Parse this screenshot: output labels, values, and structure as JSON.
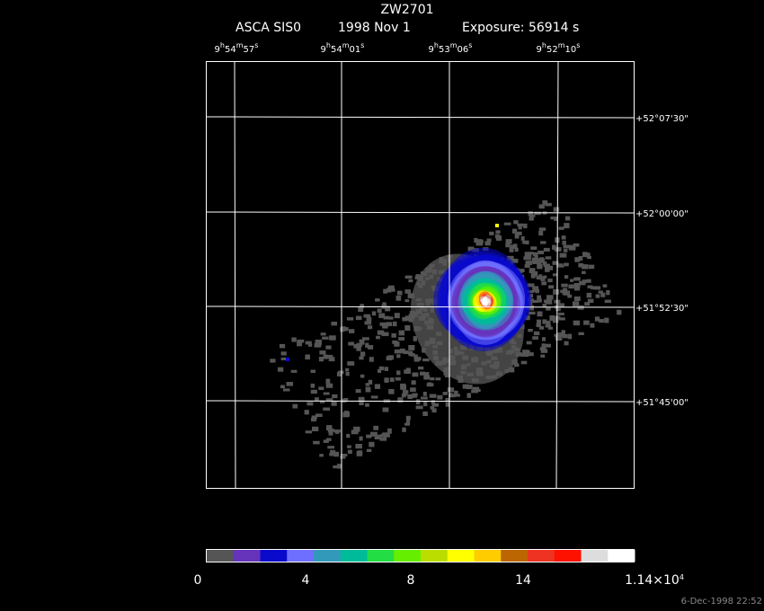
{
  "header": {
    "title": "ZW2701",
    "instrument": "ASCA SIS0",
    "date": "1998 Nov  1",
    "exposure": "Exposure: 56914 s"
  },
  "ra_labels": [
    [
      "9",
      "h",
      "54",
      "m",
      "57",
      "s"
    ],
    [
      "9",
      "h",
      "54",
      "m",
      "01",
      "s"
    ],
    [
      "9",
      "h",
      "53",
      "m",
      "06",
      "s"
    ],
    [
      "9",
      "h",
      "52",
      "m",
      "10",
      "s"
    ]
  ],
  "dec_labels": [
    "+52°07'30\"",
    "+52°00'00\"",
    "+51°52'30\"",
    "+51°45'00\""
  ],
  "colorbar": {
    "colors": [
      "#555555",
      "#6633bb",
      "#0a0acc",
      "#6f6fff",
      "#3399bb",
      "#00bb99",
      "#22dd44",
      "#66ee00",
      "#bbdd00",
      "#ffff00",
      "#ffcc00",
      "#bb6600",
      "#ee3322",
      "#ff1100",
      "#dddddd",
      "#ffffff"
    ],
    "labels": [
      [
        "0"
      ],
      [
        "4"
      ],
      [
        "8"
      ],
      [
        "14"
      ],
      [
        "1.14×10",
        "4"
      ]
    ]
  },
  "timestamp": "6-Dec-1998 22:52"
}
